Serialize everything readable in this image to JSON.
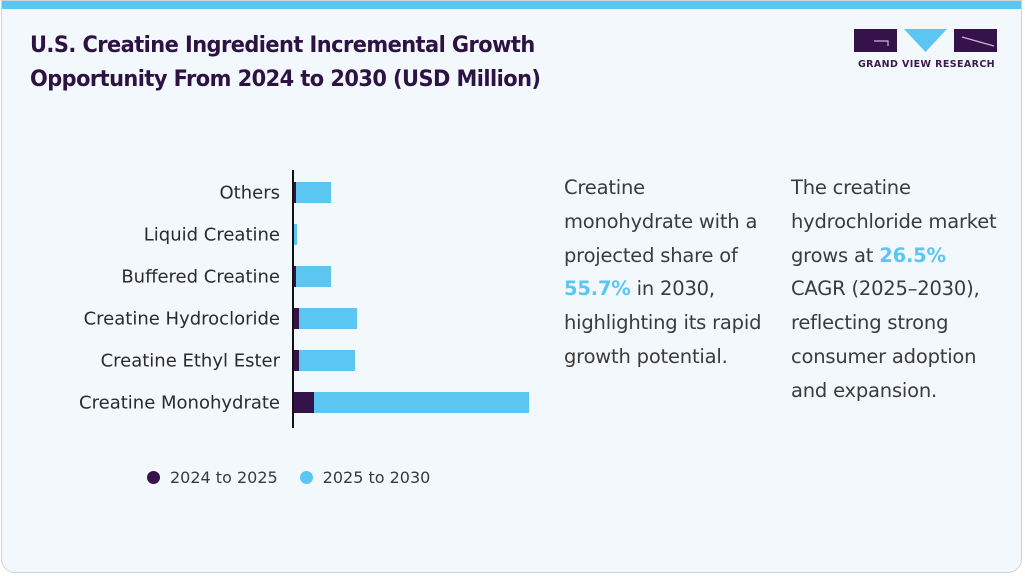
{
  "header": {
    "title_line1": "U.S. Creatine Ingredient Incremental Growth",
    "title_line2": "Opportunity From 2024 to 2030 (USD Million)"
  },
  "logo": {
    "text": "GRAND VIEW RESEARCH",
    "colors": {
      "dark": "#35124a",
      "accent": "#5bc6f2"
    }
  },
  "chart_data": {
    "type": "bar",
    "orientation": "horizontal",
    "stacked": true,
    "title": "U.S. Creatine Ingredient Incremental Growth Opportunity From 2024 to 2030 (USD Million)",
    "xlabel": "",
    "ylabel": "",
    "units": "USD Million (relative estimate; no axis values shown)",
    "categories": [
      "Others",
      "Liquid Creatine",
      "Buffered Creatine",
      "Creatine Hydrocloride",
      "Creatine Ethyl Ester",
      "Creatine Monohydrate"
    ],
    "series": [
      {
        "name": "2024 to 2025",
        "color": "#35124a",
        "values": [
          2,
          0,
          2,
          5,
          5,
          20
        ]
      },
      {
        "name": "2025 to 2030",
        "color": "#5bc6f2",
        "values": [
          35,
          3,
          35,
          58,
          56,
          215
        ]
      }
    ],
    "xlim": [
      0,
      235
    ],
    "grid": false,
    "legend_position": "bottom-left"
  },
  "legend": [
    {
      "label": "2024 to 2025",
      "color": "#35124a"
    },
    {
      "label": "2025 to 2030",
      "color": "#5bc6f2"
    }
  ],
  "insights": [
    {
      "before": "Creatine monohydrate with a projected share of ",
      "highlight": "55.7%",
      "after": " in 2030, highlighting its rapid growth potential."
    },
    {
      "before": "The creatine hydrochloride market grows at ",
      "highlight": "26.5%",
      "after": " CAGR (2025–2030), reflecting strong consumer adoption and expansion."
    }
  ],
  "colors": {
    "title": "#2d1244",
    "accent_bar": "#5bc6f2",
    "background": "#f3f8fc"
  }
}
